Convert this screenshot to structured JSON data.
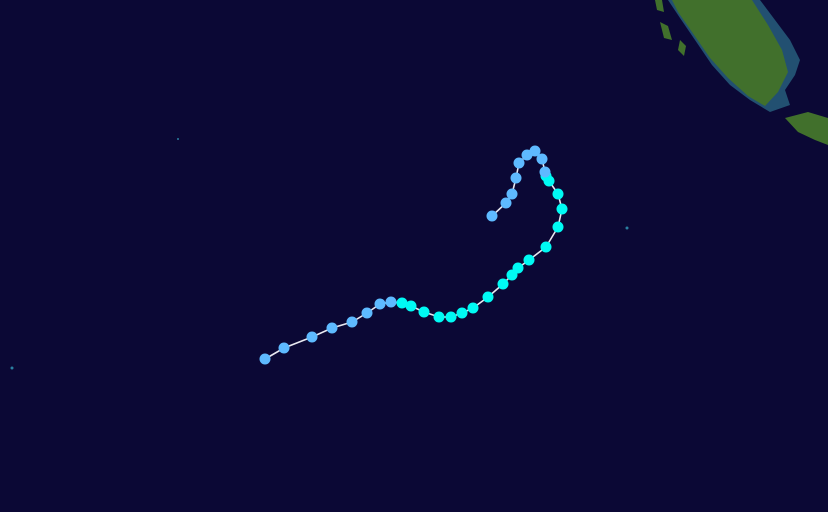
{
  "map": {
    "ocean_color": "#0b0835",
    "land_color": "#3f6b2a",
    "shallow_color": "#2a7fa0",
    "track_line_color": "#e8e8f0"
  },
  "legend_colors": {
    "depression": "#5ebaff",
    "storm": "#00faf4"
  },
  "track": [
    "depression",
    "depression",
    "depression",
    "depression",
    "depression",
    "depression",
    "depression",
    "depression",
    "storm",
    "storm",
    "storm",
    "storm",
    "storm",
    "storm",
    "storm",
    "storm",
    "storm",
    "storm",
    "storm",
    "storm",
    "storm",
    "storm",
    "storm",
    "storm",
    "storm",
    "storm",
    "depression",
    "depression",
    "depression",
    "depression",
    "depression",
    "depression",
    "depression",
    "depression",
    "depression",
    "depression"
  ]
}
